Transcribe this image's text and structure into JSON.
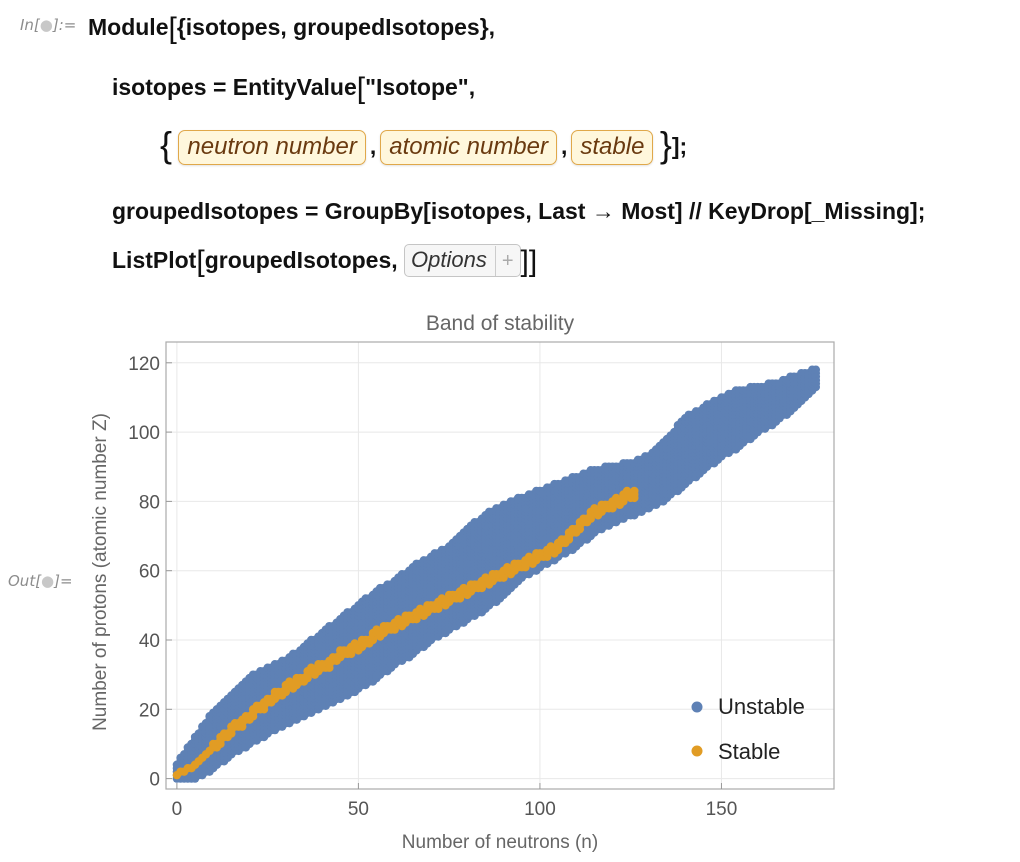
{
  "input_label": {
    "prefix": "In[",
    "dot": "●",
    "suffix": "]:="
  },
  "output_label": {
    "prefix": "Out[",
    "dot": "●",
    "suffix": "]="
  },
  "code": {
    "line1": {
      "module": "Module",
      "vars": "{isotopes, groupedIsotopes},"
    },
    "line2": {
      "assign": "isotopes = EntityValue",
      "arg": "\"Isotope\","
    },
    "line3": {
      "entities": [
        "neutron number",
        "atomic number",
        "stable"
      ],
      "close": "];"
    },
    "line4": {
      "text": "groupedIsotopes = GroupBy[isotopes, Last → Most] // KeyDrop[_Missing];"
    },
    "line5": {
      "call": "ListPlot",
      "arg": "groupedIsotopes,",
      "options_label": "Options",
      "options_plus": "+"
    }
  },
  "chart_data": {
    "type": "scatter",
    "title": "Band of stability",
    "xlabel": "Number of neutrons (n)",
    "ylabel": "Number of protons (atomic number Z)",
    "xlim": [
      -3,
      181
    ],
    "ylim": [
      -3,
      126
    ],
    "xticks": [
      0,
      50,
      100,
      150
    ],
    "yticks": [
      0,
      20,
      40,
      60,
      80,
      100,
      120
    ],
    "grid": true,
    "legend_position": "bottom-right",
    "colors": {
      "Unstable": "#5e81b5",
      "Stable": "#e19c24",
      "frame": "#aaaaaa",
      "grid": "#e8e8e8"
    },
    "series": [
      {
        "name": "Unstable",
        "color": "#5e81b5",
        "description": "N-Z band of unstable isotopes; [neutron, proton_min, proton_max] envelope",
        "envelope": [
          [
            0,
            0,
            4
          ],
          [
            5,
            0,
            12
          ],
          [
            10,
            3,
            19
          ],
          [
            15,
            7,
            24
          ],
          [
            20,
            10,
            29
          ],
          [
            25,
            13,
            32
          ],
          [
            30,
            16,
            34
          ],
          [
            35,
            18,
            38
          ],
          [
            40,
            21,
            42
          ],
          [
            45,
            23,
            46
          ],
          [
            50,
            26,
            50
          ],
          [
            55,
            29,
            54
          ],
          [
            60,
            33,
            57
          ],
          [
            65,
            36,
            61
          ],
          [
            70,
            40,
            64
          ],
          [
            75,
            43,
            67
          ],
          [
            80,
            46,
            72
          ],
          [
            85,
            49,
            76
          ],
          [
            90,
            53,
            79
          ],
          [
            95,
            58,
            81
          ],
          [
            100,
            61,
            83
          ],
          [
            105,
            64,
            85
          ],
          [
            110,
            67,
            87
          ],
          [
            115,
            71,
            89
          ],
          [
            120,
            74,
            90
          ],
          [
            125,
            76,
            91
          ],
          [
            130,
            78,
            93
          ],
          [
            135,
            81,
            98
          ],
          [
            140,
            85,
            104
          ],
          [
            145,
            89,
            107
          ],
          [
            150,
            93,
            110
          ],
          [
            155,
            96,
            112
          ],
          [
            160,
            100,
            113
          ],
          [
            165,
            103,
            114
          ],
          [
            170,
            107,
            116
          ],
          [
            176,
            113,
            118
          ]
        ]
      },
      {
        "name": "Stable",
        "color": "#e19c24",
        "description": "stable isotopes; [neutron, proton_center]",
        "centerline": [
          [
            0,
            1
          ],
          [
            2,
            2
          ],
          [
            4,
            3
          ],
          [
            6,
            5
          ],
          [
            8,
            7
          ],
          [
            10,
            9
          ],
          [
            12,
            11
          ],
          [
            14,
            13
          ],
          [
            16,
            15
          ],
          [
            18,
            16
          ],
          [
            20,
            18
          ],
          [
            22,
            20
          ],
          [
            24,
            21
          ],
          [
            26,
            23
          ],
          [
            28,
            24
          ],
          [
            30,
            26
          ],
          [
            32,
            27
          ],
          [
            34,
            28
          ],
          [
            36,
            30
          ],
          [
            38,
            31
          ],
          [
            40,
            32
          ],
          [
            42,
            33
          ],
          [
            44,
            35
          ],
          [
            46,
            36
          ],
          [
            48,
            37
          ],
          [
            50,
            38
          ],
          [
            52,
            39
          ],
          [
            54,
            41
          ],
          [
            56,
            42
          ],
          [
            58,
            43
          ],
          [
            60,
            44
          ],
          [
            62,
            45
          ],
          [
            64,
            46
          ],
          [
            66,
            47
          ],
          [
            68,
            48
          ],
          [
            70,
            49
          ],
          [
            72,
            50
          ],
          [
            74,
            51
          ],
          [
            76,
            52
          ],
          [
            78,
            53
          ],
          [
            80,
            54
          ],
          [
            82,
            55
          ],
          [
            84,
            56
          ],
          [
            86,
            57
          ],
          [
            88,
            58
          ],
          [
            90,
            59
          ],
          [
            92,
            60
          ],
          [
            94,
            61
          ],
          [
            96,
            62
          ],
          [
            98,
            63
          ],
          [
            100,
            64
          ],
          [
            102,
            65
          ],
          [
            104,
            66
          ],
          [
            106,
            68
          ],
          [
            108,
            70
          ],
          [
            110,
            72
          ],
          [
            112,
            74
          ],
          [
            114,
            76
          ],
          [
            116,
            77
          ],
          [
            118,
            78
          ],
          [
            120,
            79
          ],
          [
            122,
            80
          ],
          [
            124,
            82
          ],
          [
            126,
            82
          ]
        ]
      }
    ]
  }
}
